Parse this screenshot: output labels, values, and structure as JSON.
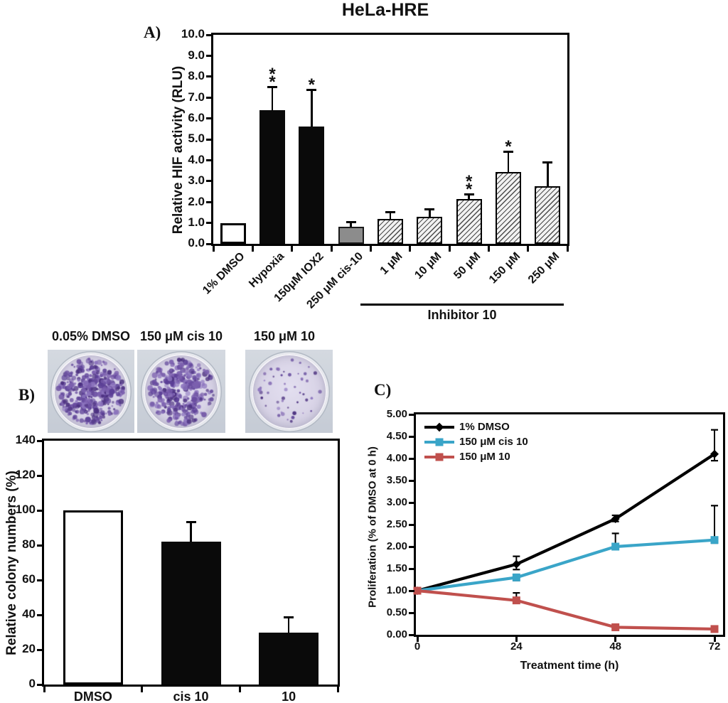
{
  "figure_title": "HeLa-HRE",
  "panel_a": {
    "label": "A)"
  },
  "panel_b": {
    "label": "B)",
    "dishes": [
      {
        "label": "0.05% DMSO",
        "colony_density": "high",
        "colony_count": 270
      },
      {
        "label": "150 μM cis 10",
        "colony_density": "high",
        "colony_count": 230
      },
      {
        "label": "150 μM 10",
        "colony_density": "low",
        "colony_count": 48
      }
    ]
  },
  "panel_c": {
    "label": "C)"
  },
  "colors": {
    "bar_black": "#0a0a0a",
    "bar_gray": "#8c8c8c",
    "hatch_line": "#4a4a4a",
    "dmso_line": "#000000",
    "cis10_line": "#3aa5c8",
    "compound10_line": "#c0504d",
    "colony_purple": "#6a4da0"
  },
  "chart_data": [
    {
      "id": "hif_activity",
      "type": "bar",
      "title": "HeLa-HRE",
      "ylabel": "Relative HIF activity (RLU)",
      "ylim": [
        0,
        10
      ],
      "ytick_step": 1.0,
      "yticks": [
        "0.0",
        "1.0",
        "2.0",
        "3.0",
        "4.0",
        "5.0",
        "6.0",
        "7.0",
        "8.0",
        "9.0",
        "10.0"
      ],
      "categories": [
        "1% DMSO",
        "Hypoxia",
        "150μM IOX2",
        "250 μM cis-10",
        "1 μM",
        "10 μM",
        "50 μM",
        "150 μM",
        "250 μM"
      ],
      "values": [
        1.0,
        6.4,
        5.6,
        0.8,
        1.2,
        1.3,
        2.15,
        3.45,
        2.75
      ],
      "errors_plus": [
        0,
        1.05,
        1.7,
        0.18,
        0.28,
        0.3,
        0.18,
        0.9,
        1.1
      ],
      "bar_styles": [
        "white",
        "black",
        "black",
        "gray",
        "hatch",
        "hatch",
        "hatch",
        "hatch",
        "hatch"
      ],
      "significance": [
        "",
        "**",
        "*",
        "",
        "",
        "",
        "**",
        "*",
        ""
      ],
      "group_annotation": {
        "label": "Inhibitor 10",
        "from_category": "1 μM",
        "to_category": "250 μM"
      },
      "grid": false
    },
    {
      "id": "colony_numbers",
      "type": "bar",
      "ylabel": "Relative colony numbers (%)",
      "ylim": [
        0,
        140
      ],
      "ytick_step": 20,
      "yticks": [
        "0",
        "20",
        "40",
        "60",
        "80",
        "100",
        "120",
        "140"
      ],
      "categories": [
        "DMSO",
        "cis 10",
        "10"
      ],
      "values": [
        100,
        82,
        30
      ],
      "errors_plus": [
        0,
        10.5,
        8
      ],
      "bar_styles": [
        "white",
        "black",
        "black"
      ],
      "grid": false
    },
    {
      "id": "proliferation",
      "type": "line",
      "xlabel": "Treatment time (h)",
      "ylabel": "Proliferation (% of DMSO at 0 h)",
      "x": [
        0,
        24,
        48,
        72
      ],
      "xticks": [
        "0",
        "24",
        "48",
        "72"
      ],
      "ylim": [
        0,
        5
      ],
      "ytick_step": 0.5,
      "yticks": [
        "0.00",
        "0.50",
        "1.00",
        "1.50",
        "2.00",
        "2.50",
        "3.00",
        "3.50",
        "4.00",
        "4.50",
        "5.00"
      ],
      "legend_position": "top-left",
      "grid": false,
      "series": [
        {
          "name": "1% DMSO",
          "color": "#000000",
          "marker": "diamond",
          "values": [
            1.0,
            1.6,
            2.63,
            4.1
          ],
          "errors_plus": [
            0.04,
            0.18,
            0.08,
            0.55
          ],
          "errors_minus": [
            0.04,
            0.12,
            0.06,
            0.15
          ]
        },
        {
          "name": "150 μM cis 10",
          "color": "#3aa5c8",
          "marker": "square",
          "values": [
            1.0,
            1.3,
            2.0,
            2.15
          ],
          "errors_plus": [
            0.04,
            0.07,
            0.3,
            0.78
          ],
          "errors_minus": [
            0.04,
            0.07,
            0.07,
            0.07
          ]
        },
        {
          "name": "150 μM 10",
          "color": "#c0504d",
          "marker": "square",
          "values": [
            1.0,
            0.78,
            0.17,
            0.13
          ],
          "errors_plus": [
            0.05,
            0.17,
            0.04,
            0.04
          ],
          "errors_minus": [
            0.05,
            0.06,
            0.03,
            0.03
          ]
        }
      ]
    }
  ]
}
